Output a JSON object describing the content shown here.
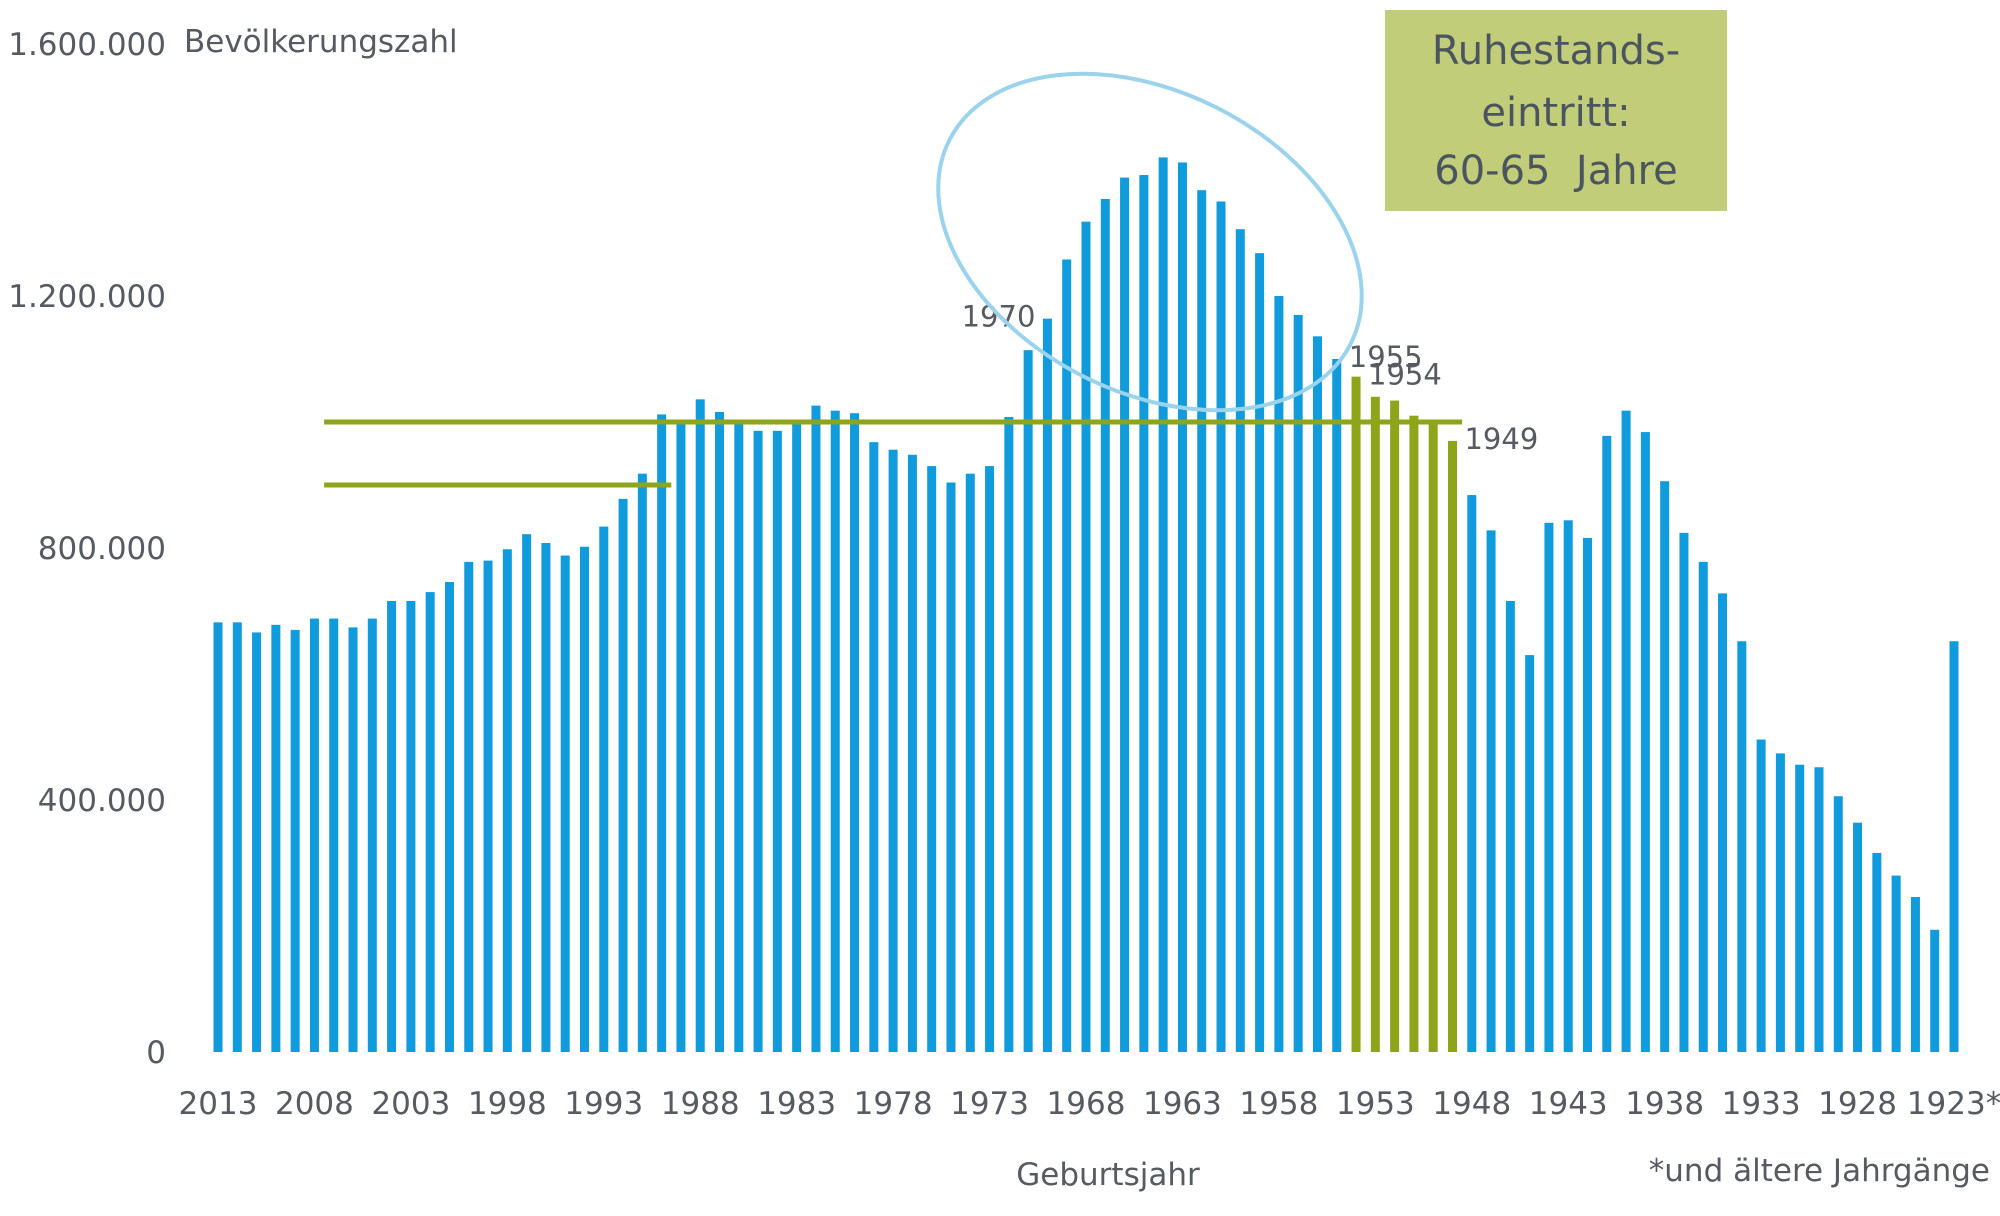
{
  "chart_data": {
    "type": "bar",
    "ylabel": "Bevölkerungszahl",
    "xlabel": "Geburtsjahr",
    "ylim": [
      0,
      1600000
    ],
    "yticks": [
      0,
      400000,
      800000,
      1200000,
      1600000
    ],
    "ytick_labels": [
      "0",
      "400.000",
      "800.000",
      "1.200.000",
      "1.600.000"
    ],
    "xtick_labels": [
      "2013",
      "2008",
      "2003",
      "1998",
      "1993",
      "1988",
      "1983",
      "1978",
      "1973",
      "1968",
      "1963",
      "1958",
      "1953",
      "1948",
      "1943",
      "1938",
      "1933",
      "1928",
      "1923*"
    ],
    "categories": [
      "2013",
      "2012",
      "2011",
      "2010",
      "2009",
      "2008",
      "2007",
      "2006",
      "2005",
      "2004",
      "2003",
      "2002",
      "2001",
      "2000",
      "1999",
      "1998",
      "1997",
      "1996",
      "1995",
      "1994",
      "1993",
      "1992",
      "1991",
      "1990",
      "1989",
      "1988",
      "1987",
      "1986",
      "1985",
      "1984",
      "1983",
      "1982",
      "1981",
      "1980",
      "1979",
      "1978",
      "1977",
      "1976",
      "1975",
      "1974",
      "1973",
      "1972",
      "1971",
      "1970",
      "1969",
      "1968",
      "1967",
      "1966",
      "1965",
      "1964",
      "1963",
      "1962",
      "1961",
      "1960",
      "1959",
      "1958",
      "1957",
      "1956",
      "1955",
      "1954",
      "1953",
      "1952",
      "1951",
      "1950",
      "1949",
      "1948",
      "1947",
      "1946",
      "1945",
      "1944",
      "1943",
      "1942",
      "1941",
      "1940",
      "1939",
      "1938",
      "1937",
      "1936",
      "1935",
      "1934",
      "1933",
      "1932",
      "1931",
      "1930",
      "1929",
      "1928",
      "1927",
      "1926",
      "1925",
      "1924",
      "1923*"
    ],
    "values": [
      682000,
      682000,
      666000,
      678000,
      670000,
      688000,
      688000,
      674000,
      688000,
      716000,
      716000,
      730000,
      746000,
      778000,
      780000,
      798000,
      822000,
      808000,
      788000,
      802000,
      834000,
      878000,
      918000,
      1012000,
      1000000,
      1036000,
      1016000,
      1000000,
      986000,
      986000,
      996000,
      1026000,
      1018000,
      1014000,
      968000,
      956000,
      948000,
      930000,
      904000,
      918000,
      930000,
      1008000,
      1114000,
      1164000,
      1258000,
      1318000,
      1354000,
      1388000,
      1392000,
      1420000,
      1412000,
      1368000,
      1350000,
      1306000,
      1268000,
      1200000,
      1170000,
      1136000,
      1100000,
      1072000,
      1040000,
      1034000,
      1010000,
      1000000,
      970000,
      884000,
      828000,
      716000,
      630000,
      840000,
      844000,
      816000,
      978000,
      1018000,
      984000,
      906000,
      824000,
      778000,
      728000,
      652000,
      496000,
      474000,
      456000,
      452000,
      406000,
      364000,
      316000,
      280000,
      246000,
      194000,
      652000
    ],
    "highlight": {
      "from": "1954",
      "to": "1949",
      "color": "#8ea41a"
    },
    "bar_color": "#0f9bdc",
    "reference_lines": [
      {
        "value": 1000000,
        "from": "2007",
        "to": "1949",
        "color": "#8ea41a"
      },
      {
        "value": 900000,
        "from": "2007",
        "to": "1990",
        "color": "#8ea41a"
      }
    ],
    "annotations": [
      {
        "text": "1970",
        "category": "1970"
      },
      {
        "text": "1955",
        "category": "1955"
      },
      {
        "text": "1954",
        "category": "1954"
      },
      {
        "text": "1949",
        "category": "1949"
      }
    ],
    "ellipse_color": "#9bd3ec",
    "info_box": {
      "lines": [
        "Ruhestands-",
        "eintritt:",
        "60-65  Jahre"
      ],
      "color": "#c2cd79"
    },
    "footnote": "*und ältere Jahrgänge"
  }
}
